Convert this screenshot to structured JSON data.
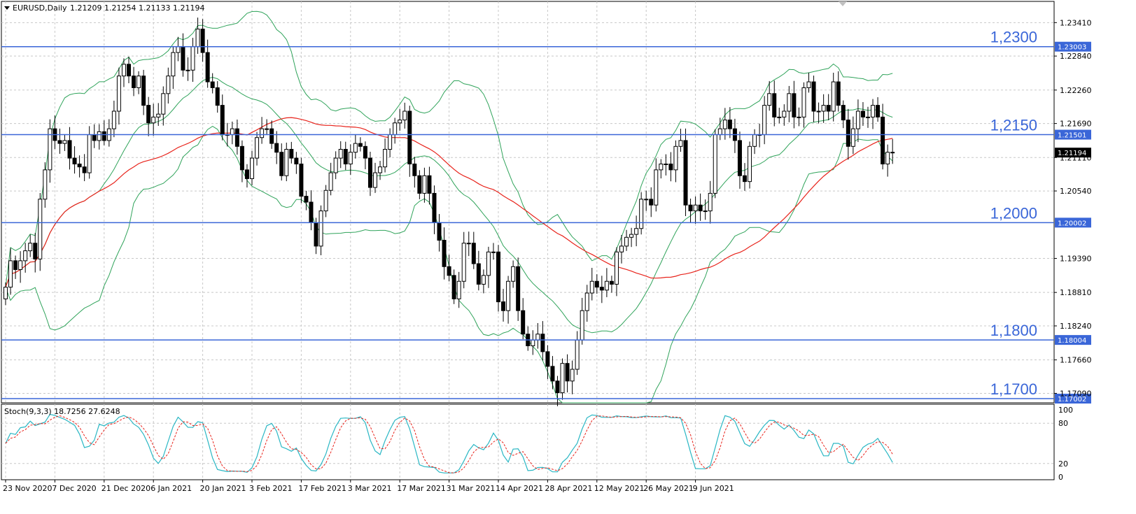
{
  "header": {
    "symbol": "EURUSD,Daily",
    "ohlc": "1.21209 1.21254 1.21133 1.21194"
  },
  "indicator": {
    "label": "Stoch(9,3,3) 18.7256 27.6248",
    "levels": [
      20,
      80
    ],
    "scale_labels": [
      "100",
      "80",
      "20",
      "0"
    ]
  },
  "colors": {
    "grid": "#c8c8c8",
    "level": "#3a66d8",
    "ma": "#e8231b",
    "bands": "#2fa35a",
    "stoch_main": "#2ab7c4",
    "stoch_signal": "#e8231b"
  },
  "chart_data": {
    "type": "candlestick",
    "title": "EURUSD,Daily",
    "ylim": [
      1.17,
      1.237
    ],
    "price_ticks": [
      "1.23410",
      "1.22840",
      "1.22260",
      "1.21690",
      "1.21110",
      "1.20540",
      "1.19390",
      "1.18810",
      "1.18240",
      "1.17660",
      "1.17090"
    ],
    "x_tick_labels": [
      "23 Nov 2020",
      "7 Dec 2020",
      "21 Dec 2020",
      "6 Jan 2021",
      "20 Jan 2021",
      "3 Feb 2021",
      "17 Feb 2021",
      "3 Mar 2021",
      "17 Mar 2021",
      "31 Mar 2021",
      "14 Apr 2021",
      "28 Apr 2021",
      "12 May 2021",
      "26 May 2021",
      "9 Jun 2021"
    ],
    "levels": [
      {
        "label": "1,2300",
        "value": 1.23,
        "tag": "1.23003"
      },
      {
        "label": "1,2150",
        "value": 1.215,
        "tag": "1.21501"
      },
      {
        "label": "1,2000",
        "value": 1.2,
        "tag": "1.20002"
      },
      {
        "label": "1,1800",
        "value": 1.18,
        "tag": "1.18004"
      },
      {
        "label": "1,1700",
        "value": 1.17,
        "tag": "1.17002"
      }
    ],
    "current_price": {
      "value": 1.21194,
      "tag": "1.21194"
    },
    "close": [
      1.189,
      1.1935,
      1.192,
      1.1935,
      1.1952,
      1.1965,
      1.1938,
      1.204,
      1.209,
      1.216,
      1.214,
      1.2135,
      1.214,
      1.211,
      1.21,
      1.2095,
      1.2085,
      1.215,
      1.214,
      1.2155,
      1.214,
      1.216,
      1.219,
      1.225,
      1.227,
      1.225,
      1.223,
      1.225,
      1.22,
      1.217,
      1.218,
      1.2185,
      1.222,
      1.225,
      1.229,
      1.23,
      1.226,
      1.226,
      1.23,
      1.233,
      1.229,
      1.224,
      1.223,
      1.22,
      1.215,
      1.215,
      1.216,
      1.213,
      1.209,
      1.2075,
      1.211,
      1.2145,
      1.216,
      1.216,
      1.2135,
      1.212,
      1.208,
      1.2125,
      1.211,
      1.21,
      1.2045,
      1.2035,
      1.2,
      1.196,
      1.202,
      1.2055,
      1.2085,
      1.211,
      1.2125,
      1.21,
      1.212,
      1.2135,
      1.213,
      1.211,
      1.206,
      1.2085,
      1.2095,
      1.2125,
      1.215,
      1.217,
      1.2175,
      1.219,
      1.21,
      1.208,
      1.205,
      1.208,
      1.205,
      1.2,
      1.197,
      1.1925,
      1.191,
      1.187,
      1.19,
      1.1965,
      1.1965,
      1.193,
      1.1895,
      1.191,
      1.195,
      1.195,
      1.1865,
      1.185,
      1.19,
      1.1925,
      1.185,
      1.181,
      1.179,
      1.18,
      1.181,
      1.178,
      1.1755,
      1.173,
      1.171,
      1.176,
      1.173,
      1.175,
      1.18,
      1.185,
      1.188,
      1.19,
      1.189,
      1.1885,
      1.19,
      1.1895,
      1.195,
      1.196,
      1.1975,
      1.198,
      1.199,
      1.204,
      1.204,
      1.203,
      1.209,
      1.21,
      1.21,
      1.209,
      1.213,
      1.214,
      1.203,
      1.202,
      1.203,
      1.202,
      1.202,
      1.205,
      1.215,
      1.216,
      1.2175,
      1.216,
      1.214,
      1.208,
      1.207,
      1.213,
      1.215,
      1.215,
      1.22,
      1.222,
      1.218,
      1.218,
      1.219,
      1.222,
      1.218,
      1.218,
      1.223,
      1.224,
      1.219,
      1.219,
      1.22,
      1.219,
      1.224,
      1.22,
      1.2175,
      1.213,
      1.216,
      1.219,
      1.218,
      1.218,
      1.22,
      1.218,
      1.21,
      1.212,
      1.2119
    ]
  }
}
